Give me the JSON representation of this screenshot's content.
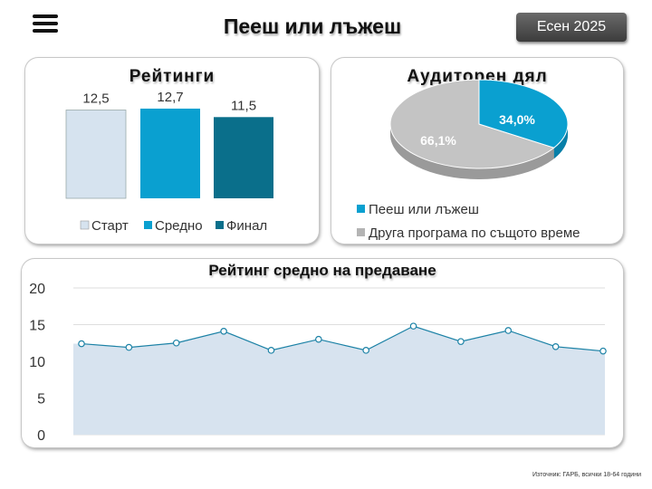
{
  "header": {
    "title": "Пееш или лъжеш",
    "season": "Есен 2025"
  },
  "colors": {
    "start": "#d6e3ef",
    "average": "#0aa0d0",
    "final": "#0a6f8b",
    "other": "#b4b4b4",
    "line": "#1c82a6",
    "area": "#d7e3ef"
  },
  "chart_data": [
    {
      "type": "bar",
      "title": "Рейтинги",
      "categories": [
        "Старт",
        "Средно",
        "Финал"
      ],
      "values": [
        12.5,
        12.7,
        11.5
      ],
      "value_labels": [
        "12,5",
        "12,7",
        "11,5"
      ],
      "legend": [
        "Старт",
        "Средно",
        "Финал"
      ],
      "legend_position": "bottom"
    },
    {
      "type": "pie",
      "title": "Аудиторен дял",
      "labels": [
        "Пееш или лъжеш",
        "Друга програма по същото време"
      ],
      "values": [
        34.0,
        66.1
      ],
      "value_labels": [
        "34,0%",
        "66,1%"
      ],
      "legend_position": "bottom"
    },
    {
      "type": "area",
      "title": "Рейтинг средно на предаване",
      "values": [
        12.4,
        11.9,
        12.5,
        14.1,
        11.5,
        13.0,
        11.5,
        14.8,
        12.7,
        14.2,
        12.0,
        11.4
      ],
      "ylim": [
        0,
        20
      ],
      "yticks": [
        "0",
        "5",
        "10",
        "15",
        "20"
      ],
      "grid": true
    }
  ],
  "source": "Източник: ГАРБ, всички 18-64 години"
}
